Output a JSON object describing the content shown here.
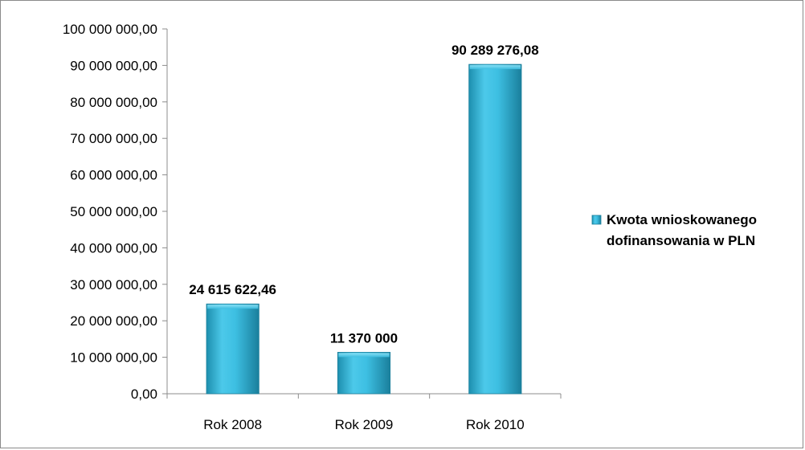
{
  "chart_data": {
    "type": "bar",
    "categories": [
      "Rok 2008",
      "Rok 2009",
      "Rok 2010"
    ],
    "series": [
      {
        "name": "Kwota wnioskowanego dofinansowania w PLN",
        "values": [
          24615622.46,
          11370000,
          90289276.08
        ],
        "data_labels": [
          "24 615 622,46",
          "11 370 000",
          "90 289 276,08"
        ],
        "color": "#31B4D9"
      }
    ],
    "y_ticks": [
      {
        "value": 0,
        "label": "0,00"
      },
      {
        "value": 10000000,
        "label": "10 000 000,00"
      },
      {
        "value": 20000000,
        "label": "20 000 000,00"
      },
      {
        "value": 30000000,
        "label": "30 000 000,00"
      },
      {
        "value": 40000000,
        "label": "40 000 000,00"
      },
      {
        "value": 50000000,
        "label": "50 000 000,00"
      },
      {
        "value": 60000000,
        "label": "60 000 000,00"
      },
      {
        "value": 70000000,
        "label": "70 000 000,00"
      },
      {
        "value": 80000000,
        "label": "80 000 000,00"
      },
      {
        "value": 90000000,
        "label": "90 000 000,00"
      },
      {
        "value": 100000000,
        "label": "100 000 000,00"
      }
    ],
    "title": "",
    "xlabel": "",
    "ylabel": "",
    "ylim": [
      0,
      100000000
    ],
    "grid": false,
    "legend": {
      "position": "right",
      "lines": [
        "Kwota wnioskowanego",
        "dofinansowania w PLN"
      ]
    }
  }
}
